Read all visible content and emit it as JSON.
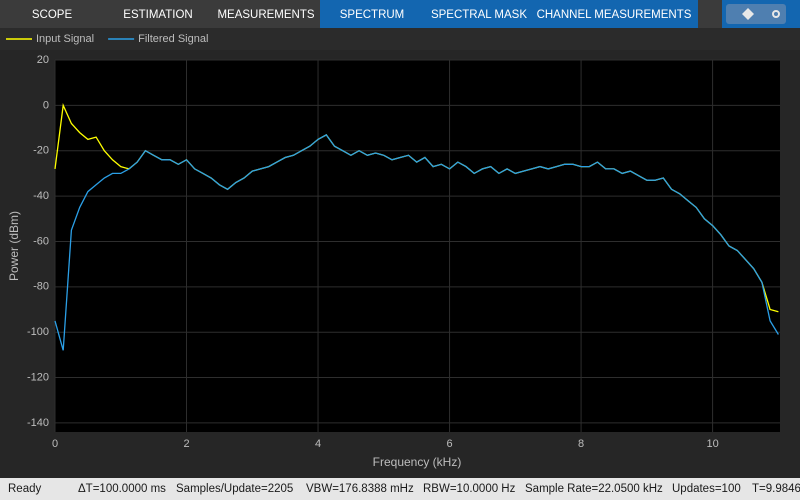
{
  "toolbar": {
    "tabs": [
      "SCOPE",
      "ESTIMATION",
      "MEASUREMENTS",
      "SPECTRUM",
      "SPECTRAL MASK",
      "CHANNEL MEASUREMENTS"
    ]
  },
  "chart_data": {
    "type": "line",
    "x_label": "Frequency (kHz)",
    "y_label": "Power (dBm)",
    "x": [
      0,
      0.125,
      0.25,
      0.375,
      0.5,
      0.625,
      0.75,
      0.875,
      1,
      1.125,
      1.25,
      1.375,
      1.5,
      1.625,
      1.75,
      1.875,
      2,
      2.125,
      2.25,
      2.375,
      2.5,
      2.625,
      2.75,
      2.875,
      3,
      3.125,
      3.25,
      3.375,
      3.5,
      3.625,
      3.75,
      3.875,
      4,
      4.125,
      4.25,
      4.375,
      4.5,
      4.625,
      4.75,
      4.875,
      5,
      5.125,
      5.25,
      5.375,
      5.5,
      5.625,
      5.75,
      5.875,
      6,
      6.125,
      6.25,
      6.375,
      6.5,
      6.625,
      6.75,
      6.875,
      7,
      7.125,
      7.25,
      7.375,
      7.5,
      7.625,
      7.75,
      7.875,
      8,
      8.125,
      8.25,
      8.375,
      8.5,
      8.625,
      8.75,
      8.875,
      9,
      9.125,
      9.25,
      9.375,
      9.5,
      9.625,
      9.75,
      9.875,
      10,
      10.125,
      10.25,
      10.375,
      10.5,
      10.625,
      10.75,
      10.875,
      11
    ],
    "series": [
      {
        "name": "Input Signal",
        "color": "#ffff00",
        "values": [
          -28,
          0,
          -8,
          -12,
          -15,
          -14,
          -20,
          -24,
          -27,
          -28,
          -25,
          -20,
          -22,
          -24,
          -24,
          -26,
          -24,
          -28,
          -30,
          -32,
          -35,
          -37,
          -34,
          -32,
          -29,
          -28,
          -27,
          -25,
          -23,
          -22,
          -20,
          -18,
          -15,
          -13,
          -18,
          -20,
          -22,
          -20,
          -22,
          -21,
          -22,
          -24,
          -23,
          -22,
          -25,
          -23,
          -27,
          -26,
          -28,
          -25,
          -27,
          -30,
          -28,
          -27,
          -30,
          -28,
          -30,
          -29,
          -28,
          -27,
          -28,
          -27,
          -26,
          -26,
          -27,
          -27,
          -25,
          -28,
          -28,
          -30,
          -29,
          -31,
          -33,
          -33,
          -32,
          -37,
          -39,
          -42,
          -45,
          -50,
          -53,
          -57,
          -62,
          -64,
          -68,
          -72,
          -78,
          -90,
          -91
        ]
      },
      {
        "name": "Filtered Signal",
        "color": "#2b9fe6",
        "values": [
          -95,
          -108,
          -55,
          -45,
          -38,
          -35,
          -32,
          -30,
          -30,
          -28,
          -25,
          -20,
          -22,
          -24,
          -24,
          -26,
          -24,
          -28,
          -30,
          -32,
          -35,
          -37,
          -34,
          -32,
          -29,
          -28,
          -27,
          -25,
          -23,
          -22,
          -20,
          -18,
          -15,
          -13,
          -18,
          -20,
          -22,
          -20,
          -22,
          -21,
          -22,
          -24,
          -23,
          -22,
          -25,
          -23,
          -27,
          -26,
          -28,
          -25,
          -27,
          -30,
          -28,
          -27,
          -30,
          -28,
          -30,
          -29,
          -28,
          -27,
          -28,
          -27,
          -26,
          -26,
          -27,
          -27,
          -25,
          -28,
          -28,
          -30,
          -29,
          -31,
          -33,
          -33,
          -32,
          -37,
          -39,
          -42,
          -45,
          -50,
          -53,
          -57,
          -62,
          -64,
          -68,
          -72,
          -78,
          -95,
          -101
        ]
      }
    ],
    "xlim": [
      0,
      11.025
    ],
    "ylim": [
      -144,
      20
    ],
    "xticks": [
      0,
      2,
      4,
      6,
      8,
      10
    ],
    "yticks": [
      20,
      0,
      -20,
      -40,
      -60,
      -80,
      -100,
      -120,
      -140
    ],
    "grid": true,
    "legend": "top-left"
  },
  "status_bar": {
    "items": [
      "Ready",
      "ΔT=100.0000 ms",
      "Samples/Update=2205",
      "VBW=176.8388 mHz",
      "RBW=10.0000 Hz",
      "Sample Rate=22.0500 kHz",
      "Updates=100",
      "T=9.9846"
    ]
  }
}
